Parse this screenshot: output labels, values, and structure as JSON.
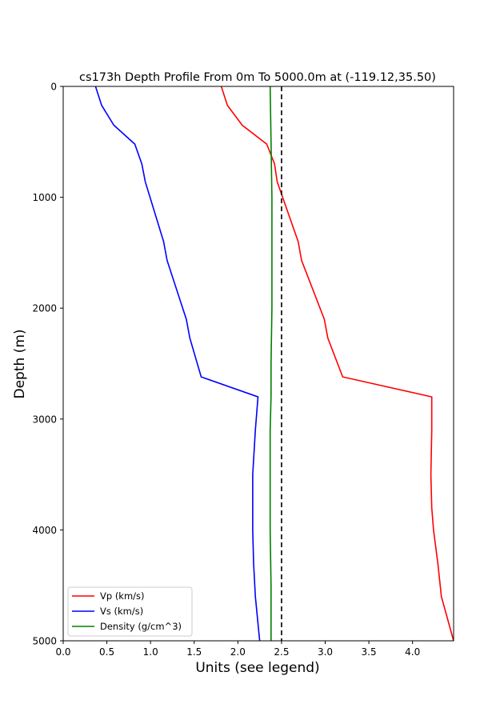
{
  "chart_data": {
    "type": "line",
    "title": "cs173h Depth Profile From 0m To 5000.0m at (-119.12,35.50)",
    "xlabel": "Units (see legend)",
    "ylabel": "Depth (m)",
    "xlim": [
      0.0,
      4.47
    ],
    "ylim": [
      5000,
      0
    ],
    "y_inverted": true,
    "xticks": [
      0.0,
      0.5,
      1.0,
      1.5,
      2.0,
      2.5,
      3.0,
      3.5,
      4.0
    ],
    "xtick_labels": [
      "0.0",
      "0.5",
      "1.0",
      "1.5",
      "2.0",
      "2.5",
      "3.0",
      "3.5",
      "4.0"
    ],
    "yticks": [
      0,
      1000,
      2000,
      3000,
      4000,
      5000
    ],
    "ytick_labels": [
      "0",
      "1000",
      "2000",
      "3000",
      "4000",
      "5000"
    ],
    "grid": false,
    "legend_position": "lower-left",
    "series": [
      {
        "name": "Vp (km/s)",
        "color": "#ff0000",
        "points": [
          [
            1.81,
            0
          ],
          [
            1.88,
            170
          ],
          [
            2.05,
            350
          ],
          [
            2.33,
            520
          ],
          [
            2.42,
            700
          ],
          [
            2.45,
            860
          ],
          [
            2.69,
            1400
          ],
          [
            2.73,
            1570
          ],
          [
            2.99,
            2100
          ],
          [
            3.03,
            2270
          ],
          [
            3.2,
            2620
          ],
          [
            4.22,
            2800
          ],
          [
            4.22,
            3100
          ],
          [
            4.21,
            3500
          ],
          [
            4.22,
            3800
          ],
          [
            4.24,
            4000
          ],
          [
            4.29,
            4300
          ],
          [
            4.33,
            4600
          ],
          [
            4.47,
            5000
          ]
        ]
      },
      {
        "name": "Vs (km/s)",
        "color": "#0000ff",
        "points": [
          [
            0.37,
            0
          ],
          [
            0.44,
            170
          ],
          [
            0.58,
            350
          ],
          [
            0.82,
            520
          ],
          [
            0.9,
            700
          ],
          [
            0.94,
            860
          ],
          [
            1.15,
            1400
          ],
          [
            1.19,
            1570
          ],
          [
            1.41,
            2100
          ],
          [
            1.45,
            2270
          ],
          [
            1.58,
            2620
          ],
          [
            2.23,
            2800
          ],
          [
            2.2,
            3100
          ],
          [
            2.17,
            3500
          ],
          [
            2.17,
            3800
          ],
          [
            2.17,
            4000
          ],
          [
            2.18,
            4300
          ],
          [
            2.2,
            4600
          ],
          [
            2.25,
            5000
          ]
        ]
      },
      {
        "name": "Density (g/cm^3)",
        "color": "#008000",
        "points": [
          [
            2.37,
            0
          ],
          [
            2.38,
            500
          ],
          [
            2.39,
            1000
          ],
          [
            2.39,
            1500
          ],
          [
            2.39,
            2000
          ],
          [
            2.38,
            2500
          ],
          [
            2.38,
            2800
          ],
          [
            2.37,
            3100
          ],
          [
            2.37,
            3500
          ],
          [
            2.37,
            4000
          ],
          [
            2.38,
            4500
          ],
          [
            2.38,
            5000
          ]
        ]
      }
    ],
    "reference_line": {
      "x": 2.5,
      "style": "dashed",
      "color": "#000000"
    }
  }
}
